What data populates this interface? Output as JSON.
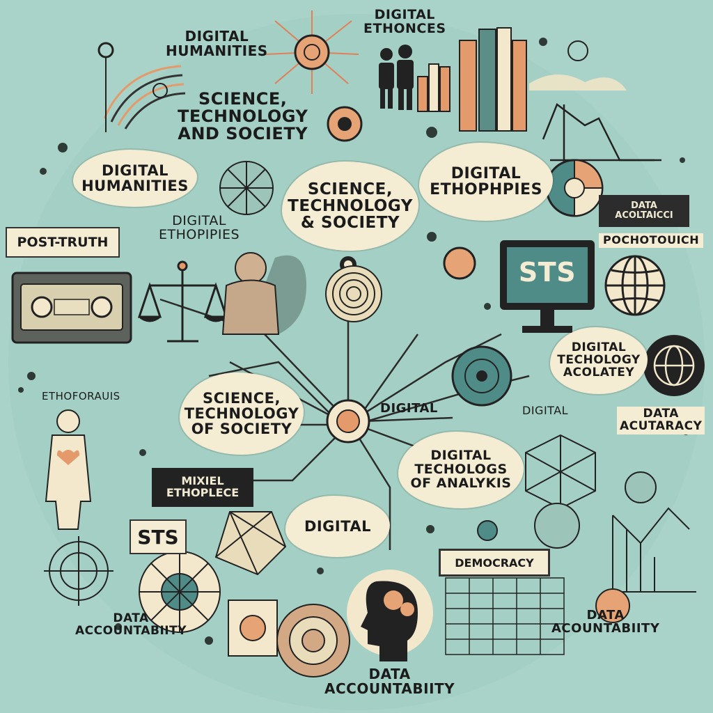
{
  "colors": {
    "background": "#a9d3c8",
    "bubble": "#f4ecd3",
    "ink": "#1b1b1b",
    "accent_orange": "#e49a6b",
    "accent_teal": "#4f8c88",
    "dark": "#222222"
  },
  "labels": {
    "digital_ethonces": [
      "DIGITAL",
      "ETHONCES"
    ],
    "digital_humanities_top": [
      "DIGITAL",
      "HUMANITIES"
    ],
    "sts_top_left": [
      "SCIENCE,",
      "TECHNOLOGY",
      "AND SOCIETY"
    ],
    "digital_humanities_mid": [
      "DIGITAL",
      "HUMANITIES"
    ],
    "sts_center": [
      "SCIENCE,",
      "TECHNOLOGY",
      "& SOCIETY"
    ],
    "digital_ethophiies_right": [
      "DIGITAL",
      "ETHOPHPIES"
    ],
    "data_acoltaicci": [
      "DATA",
      "ACOLTAICCI"
    ],
    "pochotouch": "POCHOTOUICH",
    "post_truth": "POST-TRUTH",
    "digital_ethopiies_left": [
      "DIGITAL",
      "ETHOPIPIES"
    ],
    "sts_monitor": "STS",
    "digital_tech_acolatey": [
      "DIGITAL",
      "TECHOLOGY",
      "ACOLATEY"
    ],
    "etheoffadlis": "ETHOFORAUIS",
    "sts_lower_left": [
      "SCIENCE,",
      "TECHNOLOGY",
      "OF SOCIETY"
    ],
    "digital_small": "DIGITAL",
    "digital_acfardrac": "DIGITAL",
    "data_acutaracy": [
      "DATA",
      "ACUTARACY"
    ],
    "digital_techologs": [
      "DIGITAL",
      "TECHOLOGS",
      "OF ANALYKIS"
    ],
    "mixiel_ethoplece": [
      "MIXIEL",
      "ETHOPLECE"
    ],
    "digital_bottom": "DIGITAL",
    "sts_box": "STS",
    "democracy": "DEMOCRACY",
    "data_accountabiity_left": [
      "DATA",
      "ACCOUNTABIITY"
    ],
    "data_acountabiity_right": [
      "DATA",
      "ACOUNTABIITY"
    ],
    "data_accountabiity_bottom": [
      "DATA",
      "ACCOUNTABIITY"
    ]
  },
  "icons": [
    "network-hub-icon",
    "people-icon",
    "bar-chart-icon",
    "scales-of-justice-icon",
    "monitor-icon",
    "globe-icon",
    "human-figure-icon",
    "brain-head-icon",
    "radar-target-icon",
    "geodesic-sphere-icon",
    "line-graph-icon",
    "pie-chart-icon",
    "cassette-icon"
  ]
}
